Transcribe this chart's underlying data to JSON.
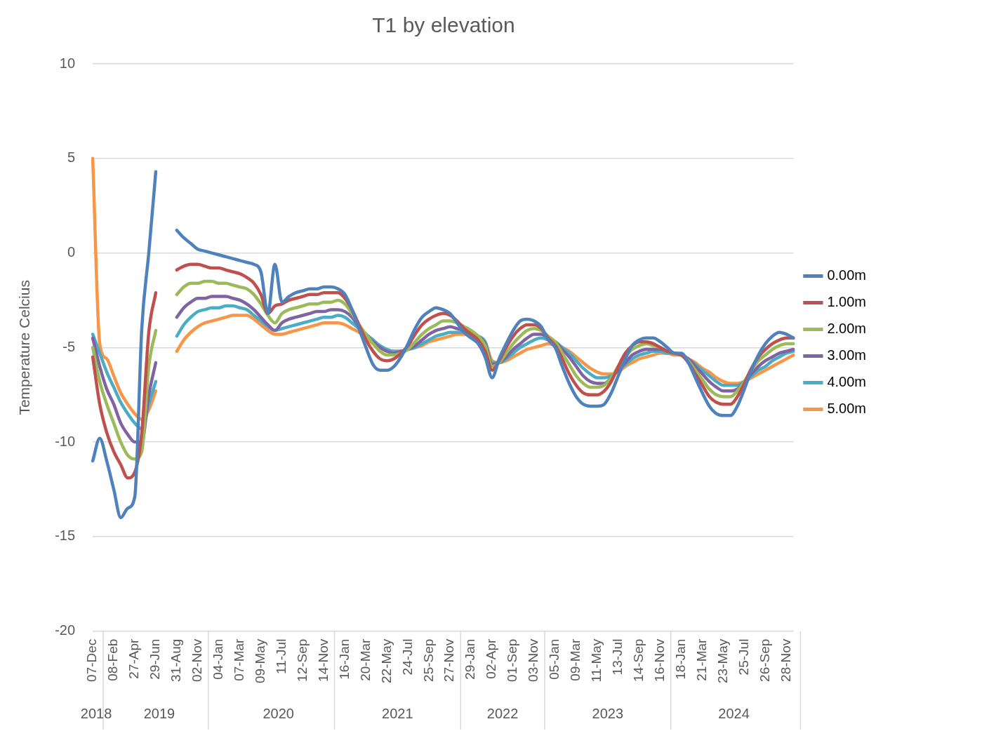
{
  "chart_data": {
    "type": "line",
    "title": "T1 by elevation",
    "ylabel": "Temperature Celcius",
    "categories": [
      "07-Dec",
      null,
      null,
      "08-Feb",
      null,
      null,
      "27-Apr",
      null,
      null,
      "29-Jun",
      null,
      null,
      "31-Aug",
      null,
      null,
      "02-Nov",
      null,
      null,
      "04-Jan",
      null,
      null,
      "07-Mar",
      null,
      null,
      "09-May",
      null,
      null,
      "11-Jul",
      null,
      null,
      "12-Sep",
      null,
      null,
      "14-Nov",
      null,
      null,
      "16-Jan",
      null,
      null,
      "20-Mar",
      null,
      null,
      "22-May",
      null,
      null,
      "24-Jul",
      null,
      null,
      "25-Sep",
      null,
      null,
      "27-Nov",
      null,
      null,
      "29-Jan",
      null,
      null,
      "02-Apr",
      null,
      null,
      "01-Sep",
      null,
      null,
      "03-Nov",
      null,
      null,
      "05-Jan",
      null,
      null,
      "09-Mar",
      null,
      null,
      "11-May",
      null,
      null,
      "13-Jul",
      null,
      null,
      "14-Sep",
      null,
      null,
      "16-Nov",
      null,
      null,
      "18-Jan",
      null,
      null,
      "21-Mar",
      null,
      null,
      "23-May",
      null,
      null,
      "25-Jul",
      null,
      null,
      "26-Sep",
      null,
      null,
      "28-Nov",
      null
    ],
    "series": [
      {
        "name": "0.00m",
        "color": "#4f81bd",
        "values": [
          -11,
          -9.8,
          -11,
          -12.5,
          -14,
          -13.5,
          -12.9,
          -4,
          0,
          4.3,
          null,
          null,
          1.2,
          0.8,
          0.5,
          0.2,
          0.1,
          0,
          -0.1,
          -0.2,
          -0.3,
          -0.4,
          -0.5,
          -0.6,
          -1,
          -3.2,
          -0.6,
          -2.6,
          -2.3,
          -2.1,
          -2,
          -1.9,
          -1.9,
          -1.8,
          -1.8,
          -1.9,
          -2.2,
          -3,
          -4,
          -5,
          -5.9,
          -6.2,
          -6.2,
          -6,
          -5.5,
          -4.8,
          -4,
          -3.4,
          -3.1,
          -2.9,
          -3,
          -3.2,
          -3.7,
          -4.2,
          -4.5,
          -4.8,
          -5.5,
          -6.6,
          -5.6,
          -4.8,
          -4.1,
          -3.6,
          -3.5,
          -3.6,
          -3.9,
          -4.6,
          -5,
          -6,
          -6.9,
          -7.6,
          -8,
          -8.1,
          -8.1,
          -8,
          -7.4,
          -6.5,
          -5.6,
          -4.9,
          -4.6,
          -4.5,
          -4.5,
          -4.7,
          -5,
          -5.3,
          -5.3,
          -5.8,
          -6.6,
          -7.4,
          -8.1,
          -8.5,
          -8.6,
          -8.6,
          -8.1,
          -7.2,
          -6.2,
          -5.4,
          -4.8,
          -4.4,
          -4.2,
          -4.3,
          -4.5
        ]
      },
      {
        "name": "1.00m",
        "color": "#c0504d",
        "values": [
          -5.5,
          -8,
          -9.5,
          -10.5,
          -11.2,
          -11.9,
          -11.6,
          -9.5,
          -4.2,
          -2.1,
          null,
          null,
          -0.9,
          -0.7,
          -0.6,
          -0.6,
          -0.7,
          -0.8,
          -0.8,
          -0.9,
          -1,
          -1.1,
          -1.3,
          -1.6,
          -2.2,
          -3.2,
          -2.8,
          -2.7,
          -2.5,
          -2.4,
          -2.3,
          -2.2,
          -2.2,
          -2.1,
          -2.1,
          -2.1,
          -2.4,
          -3,
          -3.8,
          -4.6,
          -5.2,
          -5.6,
          -5.7,
          -5.6,
          -5.3,
          -4.9,
          -4.3,
          -3.8,
          -3.5,
          -3.3,
          -3.2,
          -3.3,
          -3.6,
          -4,
          -4.3,
          -4.6,
          -5.2,
          -6.2,
          -5.7,
          -5,
          -4.4,
          -4,
          -3.8,
          -3.8,
          -4,
          -4.5,
          -4.9,
          -5.6,
          -6.4,
          -7,
          -7.4,
          -7.5,
          -7.5,
          -7.3,
          -6.8,
          -6,
          -5.3,
          -4.9,
          -4.7,
          -4.7,
          -4.8,
          -5,
          -5.2,
          -5.3,
          -5.4,
          -5.8,
          -6.4,
          -7,
          -7.6,
          -7.9,
          -8,
          -8,
          -7.6,
          -6.9,
          -6.1,
          -5.5,
          -5.1,
          -4.8,
          -4.6,
          -4.5,
          -4.5
        ]
      },
      {
        "name": "2.00m",
        "color": "#9bbb59",
        "values": [
          -5,
          -6.8,
          -8,
          -9,
          -10,
          -10.7,
          -10.9,
          -10.5,
          -6,
          -4.1,
          null,
          null,
          -2.2,
          -1.8,
          -1.6,
          -1.6,
          -1.5,
          -1.5,
          -1.6,
          -1.6,
          -1.7,
          -1.8,
          -1.9,
          -2.2,
          -2.7,
          -3.3,
          -3.7,
          -3.2,
          -3,
          -2.9,
          -2.8,
          -2.7,
          -2.7,
          -2.6,
          -2.6,
          -2.5,
          -2.7,
          -3.2,
          -3.8,
          -4.3,
          -4.8,
          -5.2,
          -5.4,
          -5.4,
          -5.3,
          -5.1,
          -4.7,
          -4.3,
          -4,
          -3.8,
          -3.6,
          -3.6,
          -3.7,
          -3.9,
          -4.1,
          -4.4,
          -4.9,
          -6,
          -5.8,
          -5.3,
          -4.8,
          -4.4,
          -4.1,
          -4,
          -4.1,
          -4.4,
          -4.7,
          -5.3,
          -5.9,
          -6.5,
          -6.9,
          -7.1,
          -7.1,
          -7,
          -6.6,
          -6,
          -5.5,
          -5.1,
          -4.9,
          -4.8,
          -4.9,
          -5,
          -5.2,
          -5.3,
          -5.4,
          -5.7,
          -6.2,
          -6.7,
          -7.2,
          -7.5,
          -7.6,
          -7.6,
          -7.3,
          -6.8,
          -6.2,
          -5.7,
          -5.4,
          -5.1,
          -4.9,
          -4.8,
          -4.8
        ]
      },
      {
        "name": "3.00m",
        "color": "#8064a2",
        "values": [
          -4.5,
          -6,
          -7.2,
          -8,
          -9,
          -9.6,
          -10,
          -10,
          -7.5,
          -5.8,
          null,
          null,
          -3.4,
          -2.9,
          -2.6,
          -2.4,
          -2.4,
          -2.3,
          -2.3,
          -2.3,
          -2.4,
          -2.5,
          -2.7,
          -3,
          -3.4,
          -3.8,
          -4.1,
          -3.7,
          -3.5,
          -3.4,
          -3.3,
          -3.2,
          -3.1,
          -3.1,
          -3,
          -3,
          -3.1,
          -3.4,
          -3.9,
          -4.3,
          -4.7,
          -5,
          -5.2,
          -5.3,
          -5.2,
          -5.1,
          -4.9,
          -4.6,
          -4.3,
          -4.1,
          -4,
          -3.9,
          -4,
          -4.1,
          -4.2,
          -4.4,
          -4.8,
          -5.9,
          -5.8,
          -5.5,
          -5.1,
          -4.8,
          -4.5,
          -4.3,
          -4.3,
          -4.5,
          -4.7,
          -5.1,
          -5.5,
          -6,
          -6.5,
          -6.8,
          -6.9,
          -6.9,
          -6.6,
          -6.2,
          -5.8,
          -5.4,
          -5.2,
          -5.1,
          -5.1,
          -5.1,
          -5.2,
          -5.3,
          -5.4,
          -5.6,
          -6,
          -6.4,
          -6.8,
          -7.1,
          -7.3,
          -7.3,
          -7.2,
          -6.8,
          -6.4,
          -6,
          -5.7,
          -5.5,
          -5.3,
          -5.2,
          -5.1
        ]
      },
      {
        "name": "4.00m",
        "color": "#4bacc6",
        "values": [
          -4.3,
          -5.3,
          -6.3,
          -7.1,
          -7.9,
          -8.5,
          -9,
          -9.3,
          -8,
          -6.8,
          null,
          null,
          -4.4,
          -3.8,
          -3.4,
          -3.1,
          -3,
          -2.9,
          -2.9,
          -2.8,
          -2.8,
          -2.9,
          -3,
          -3.3,
          -3.6,
          -3.9,
          -4.1,
          -4,
          -3.9,
          -3.8,
          -3.7,
          -3.6,
          -3.5,
          -3.4,
          -3.4,
          -3.3,
          -3.4,
          -3.7,
          -4,
          -4.3,
          -4.6,
          -4.9,
          -5.1,
          -5.2,
          -5.2,
          -5.1,
          -5,
          -4.8,
          -4.6,
          -4.4,
          -4.3,
          -4.2,
          -4.2,
          -4.2,
          -4.3,
          -4.4,
          -4.7,
          -5.8,
          -5.8,
          -5.6,
          -5.3,
          -5,
          -4.8,
          -4.6,
          -4.5,
          -4.6,
          -4.7,
          -5,
          -5.3,
          -5.7,
          -6.1,
          -6.4,
          -6.6,
          -6.6,
          -6.5,
          -6.2,
          -5.9,
          -5.6,
          -5.4,
          -5.3,
          -5.2,
          -5.2,
          -5.3,
          -5.3,
          -5.4,
          -5.6,
          -5.9,
          -6.2,
          -6.5,
          -6.8,
          -7,
          -7,
          -7,
          -6.8,
          -6.5,
          -6.2,
          -6,
          -5.7,
          -5.5,
          -5.3,
          -5.2
        ]
      },
      {
        "name": "5.00m",
        "color": "#f79646",
        "values": [
          5,
          -4.8,
          -5.6,
          -6.5,
          -7.4,
          -8,
          -8.5,
          -8.8,
          -8.3,
          -7.3,
          null,
          null,
          -5.2,
          -4.6,
          -4.2,
          -3.9,
          -3.7,
          -3.6,
          -3.5,
          -3.4,
          -3.3,
          -3.3,
          -3.3,
          -3.5,
          -3.8,
          -4.1,
          -4.3,
          -4.3,
          -4.2,
          -4.1,
          -4,
          -3.9,
          -3.8,
          -3.7,
          -3.7,
          -3.7,
          -3.8,
          -4,
          -4.2,
          -4.5,
          -4.8,
          -5,
          -5.2,
          -5.2,
          -5.2,
          -5.1,
          -5,
          -4.9,
          -4.7,
          -4.6,
          -4.5,
          -4.4,
          -4.3,
          -4.3,
          -4.4,
          -4.5,
          -4.7,
          -5.7,
          -5.8,
          -5.7,
          -5.5,
          -5.3,
          -5.1,
          -5,
          -4.9,
          -4.8,
          -4.9,
          -5,
          -5.2,
          -5.5,
          -5.8,
          -6.1,
          -6.3,
          -6.4,
          -6.4,
          -6.3,
          -6,
          -5.8,
          -5.6,
          -5.5,
          -5.4,
          -5.3,
          -5.3,
          -5.4,
          -5.4,
          -5.6,
          -5.8,
          -6.1,
          -6.3,
          -6.6,
          -6.8,
          -6.9,
          -6.9,
          -6.8,
          -6.6,
          -6.4,
          -6.2,
          -6,
          -5.8,
          -5.6,
          -5.4
        ]
      }
    ],
    "ylim": [
      -20,
      10
    ],
    "yticks": [
      -20,
      -15,
      -10,
      -5,
      0,
      5,
      10
    ],
    "grid": "y",
    "legend": "right",
    "marker": "none",
    "annotations": [
      "2018",
      "2019",
      "2020",
      "2021",
      "2022",
      "2023",
      "2024"
    ]
  }
}
